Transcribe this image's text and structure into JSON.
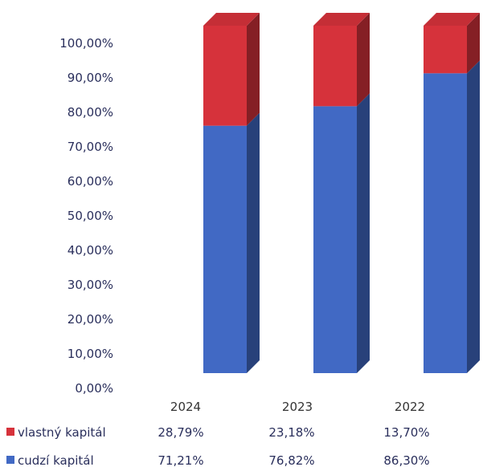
{
  "chart_data": {
    "type": "bar",
    "stacked": true,
    "three_d": true,
    "categories": [
      "2024",
      "2023",
      "2022"
    ],
    "series": [
      {
        "name": "cudzí kapitál",
        "values": [
          71.21,
          76.82,
          86.3
        ],
        "labels": [
          "71,21%",
          "76,82%",
          "86,30%"
        ],
        "color": "#4169c4"
      },
      {
        "name": "vlastný kapitál",
        "values": [
          28.79,
          23.18,
          13.7
        ],
        "labels": [
          "28,79%",
          "23,18%",
          "13,70%"
        ],
        "color": "#d6323b"
      }
    ],
    "y_ticks": [
      "0,00%",
      "10,00%",
      "20,00%",
      "30,00%",
      "40,00%",
      "50,00%",
      "60,00%",
      "70,00%",
      "80,00%",
      "90,00%",
      "100,00%"
    ],
    "ylim": [
      0,
      100
    ],
    "grid": false,
    "legend": "data-table-left"
  }
}
